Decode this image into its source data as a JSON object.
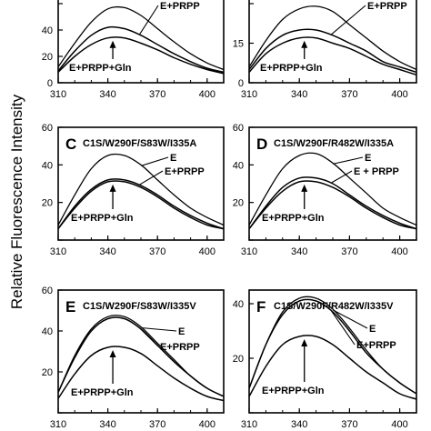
{
  "figure": {
    "ylabel": "Relative Fluorescence Intensity"
  },
  "chart_data": [
    {
      "type": "line",
      "panel": "A",
      "letter_visible": false,
      "title": "",
      "xlim": [
        310,
        410
      ],
      "ylim": [
        0,
        60
      ],
      "xticks": [
        310,
        340,
        370,
        400
      ],
      "yticks": [
        0,
        20,
        40,
        60
      ],
      "ytick_labels_visible": [
        0,
        20,
        40
      ],
      "series": [
        {
          "name": "E",
          "label_visible": false,
          "x": [
            310,
            320,
            330,
            340,
            350,
            360,
            370,
            380,
            390,
            400,
            410
          ],
          "y": [
            12,
            30,
            46,
            56,
            57,
            51,
            41,
            31,
            22,
            15,
            10
          ]
        },
        {
          "name": "E+PRPP",
          "label_visible": true,
          "x": [
            310,
            320,
            330,
            340,
            350,
            360,
            370,
            380,
            390,
            400,
            410
          ],
          "y": [
            9,
            24,
            36,
            42,
            41,
            36,
            29,
            22,
            16,
            11,
            8
          ]
        },
        {
          "name": "E+PRPP+Gln",
          "label_visible": true,
          "x": [
            310,
            320,
            330,
            340,
            350,
            360,
            370,
            380,
            390,
            400,
            410
          ],
          "y": [
            8,
            20,
            29,
            34,
            34,
            30,
            25,
            19,
            14,
            10,
            7
          ]
        }
      ]
    },
    {
      "type": "line",
      "panel": "B",
      "letter_visible": false,
      "title": "",
      "xlim": [
        310,
        410
      ],
      "ylim": [
        0,
        30
      ],
      "xticks": [
        310,
        340,
        370,
        400
      ],
      "yticks": [
        0,
        15,
        30
      ],
      "ytick_labels_visible": [
        0,
        15
      ],
      "series": [
        {
          "name": "E",
          "label_visible": false,
          "x": [
            310,
            320,
            330,
            340,
            350,
            360,
            370,
            380,
            390,
            400,
            410
          ],
          "y": [
            6,
            16,
            24,
            28,
            29,
            27,
            22,
            17,
            12,
            8,
            5
          ]
        },
        {
          "name": "E+PRPP",
          "label_visible": true,
          "x": [
            310,
            320,
            330,
            340,
            350,
            360,
            370,
            380,
            390,
            400,
            410
          ],
          "y": [
            5,
            13,
            18,
            20,
            20,
            18,
            15,
            12,
            8,
            6,
            4
          ]
        },
        {
          "name": "E+PRPP+Gln",
          "label_visible": true,
          "x": [
            310,
            320,
            330,
            340,
            350,
            360,
            370,
            380,
            390,
            400,
            410
          ],
          "y": [
            4,
            11,
            15,
            17,
            17,
            15,
            13,
            10,
            7,
            5,
            3
          ]
        }
      ]
    },
    {
      "type": "line",
      "panel": "C",
      "letter_visible": true,
      "title": "C1S/W290F/S83W/I335A",
      "xlim": [
        310,
        410
      ],
      "ylim": [
        0,
        60
      ],
      "xticks": [
        310,
        340,
        370,
        400
      ],
      "yticks": [
        0,
        20,
        40,
        60
      ],
      "ytick_labels_visible": [
        20,
        40,
        60
      ],
      "series": [
        {
          "name": "E",
          "label_visible": true,
          "x": [
            310,
            320,
            330,
            340,
            350,
            360,
            370,
            380,
            390,
            400,
            410
          ],
          "y": [
            8,
            24,
            38,
            45,
            45,
            40,
            32,
            24,
            17,
            12,
            8
          ]
        },
        {
          "name": "E+PRPP",
          "label_visible": true,
          "x": [
            310,
            320,
            330,
            340,
            350,
            360,
            370,
            380,
            390,
            400,
            410
          ],
          "y": [
            6,
            18,
            27,
            32,
            32,
            29,
            24,
            18,
            13,
            9,
            6
          ]
        },
        {
          "name": "E+PRPP+Gln",
          "label_visible": true,
          "x": [
            310,
            320,
            330,
            340,
            350,
            360,
            370,
            380,
            390,
            400,
            410
          ],
          "y": [
            6,
            17,
            26,
            31,
            31,
            28,
            23,
            17,
            12,
            8,
            6
          ]
        }
      ]
    },
    {
      "type": "line",
      "panel": "D",
      "letter_visible": true,
      "title": "C1S/W290F/R482W/I335A",
      "xlim": [
        310,
        410
      ],
      "ylim": [
        0,
        60
      ],
      "xticks": [
        310,
        340,
        370,
        400
      ],
      "yticks": [
        0,
        20,
        40,
        60
      ],
      "ytick_labels_visible": [
        20,
        40,
        60
      ],
      "series": [
        {
          "name": "E",
          "label_visible": true,
          "x": [
            310,
            320,
            330,
            340,
            350,
            360,
            370,
            380,
            390,
            400,
            410
          ],
          "y": [
            8,
            24,
            38,
            45,
            46,
            41,
            33,
            25,
            17,
            12,
            8
          ]
        },
        {
          "name": "E + PRPP",
          "label_visible": true,
          "x": [
            310,
            320,
            330,
            340,
            350,
            360,
            370,
            380,
            390,
            400,
            410
          ],
          "y": [
            6,
            18,
            28,
            33,
            33,
            30,
            24,
            18,
            13,
            9,
            6
          ]
        },
        {
          "name": "E+PRPP+Gln",
          "label_visible": true,
          "x": [
            310,
            320,
            330,
            340,
            350,
            360,
            370,
            380,
            390,
            400,
            410
          ],
          "y": [
            6,
            17,
            26,
            31,
            31,
            28,
            23,
            17,
            12,
            8,
            6
          ]
        }
      ]
    },
    {
      "type": "line",
      "panel": "E",
      "letter_visible": true,
      "title": "C1S/W290F/S83W/I335V",
      "xlim": [
        310,
        410
      ],
      "ylim": [
        0,
        60
      ],
      "xticks": [
        310,
        340,
        370,
        400
      ],
      "yticks": [
        0,
        20,
        40,
        60
      ],
      "ytick_labels_visible": [
        20,
        40,
        60
      ],
      "series": [
        {
          "name": "E",
          "label_visible": true,
          "x": [
            310,
            320,
            330,
            340,
            350,
            360,
            370,
            380,
            390,
            400,
            410
          ],
          "y": [
            10,
            28,
            41,
            47,
            47,
            42,
            34,
            26,
            18,
            12,
            8
          ]
        },
        {
          "name": "E+PRPP",
          "label_visible": true,
          "x": [
            310,
            320,
            330,
            340,
            350,
            360,
            370,
            380,
            390,
            400,
            410
          ],
          "y": [
            10,
            27,
            40,
            46,
            46,
            41,
            33,
            25,
            18,
            12,
            8
          ]
        },
        {
          "name": "E+PRPP+Gln",
          "label_visible": true,
          "x": [
            310,
            320,
            330,
            340,
            350,
            360,
            370,
            380,
            390,
            400,
            410
          ],
          "y": [
            7,
            19,
            28,
            32,
            32,
            29,
            23,
            17,
            12,
            8,
            6
          ]
        }
      ]
    },
    {
      "type": "line",
      "panel": "F",
      "letter_visible": true,
      "title": "C1S/W290F/R482W/I335V",
      "xlim": [
        310,
        410
      ],
      "ylim": [
        0,
        45
      ],
      "xticks": [
        310,
        340,
        370,
        400
      ],
      "yticks": [
        0,
        20,
        40
      ],
      "ytick_labels_visible": [
        20,
        40
      ],
      "series": [
        {
          "name": "E",
          "label_visible": true,
          "x": [
            310,
            320,
            330,
            340,
            350,
            360,
            370,
            380,
            390,
            400,
            410
          ],
          "y": [
            9,
            25,
            37,
            42,
            42,
            38,
            31,
            23,
            16,
            11,
            7
          ]
        },
        {
          "name": "E+PRPP",
          "label_visible": true,
          "x": [
            310,
            320,
            330,
            340,
            350,
            360,
            370,
            380,
            390,
            400,
            410
          ],
          "y": [
            9,
            25,
            36,
            41,
            41,
            37,
            30,
            22,
            16,
            11,
            7
          ]
        },
        {
          "name": "E+PRPP+Gln",
          "label_visible": true,
          "x": [
            310,
            320,
            330,
            340,
            350,
            360,
            370,
            380,
            390,
            400,
            410
          ],
          "y": [
            6,
            17,
            25,
            28,
            28,
            25,
            20,
            15,
            11,
            7,
            5
          ]
        }
      ]
    }
  ]
}
